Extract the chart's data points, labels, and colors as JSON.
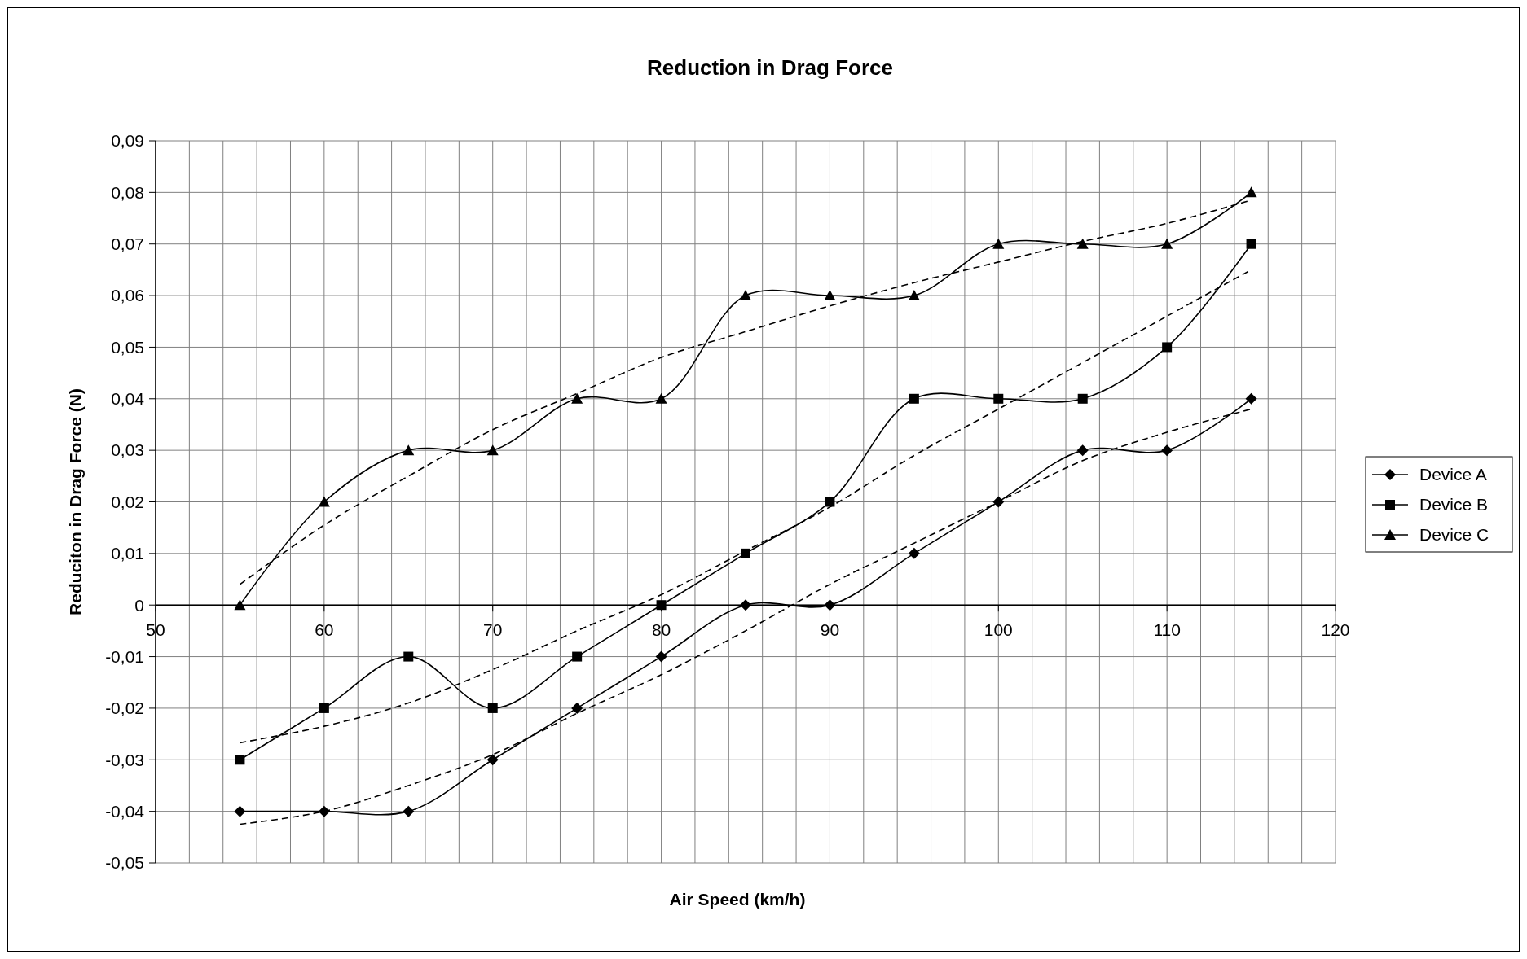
{
  "chart_data": {
    "type": "line",
    "title": "Reduction in Drag Force",
    "xlabel": "Air Speed (km/h)",
    "ylabel": "Reduciton in Drag Force (N)",
    "x": [
      55,
      60,
      65,
      70,
      75,
      80,
      85,
      90,
      95,
      100,
      105,
      110,
      115
    ],
    "series": [
      {
        "name": "Device A",
        "color": "#000000",
        "marker": "diamond",
        "values": [
          -0.04,
          -0.04,
          -0.04,
          -0.03,
          -0.02,
          -0.01,
          0,
          0,
          0.01,
          0.02,
          0.03,
          0.03,
          0.04
        ]
      },
      {
        "name": "Device B",
        "color": "#000000",
        "marker": "square",
        "values": [
          -0.03,
          -0.02,
          -0.01,
          -0.02,
          -0.01,
          0,
          0.01,
          0.02,
          0.04,
          0.04,
          0.04,
          0.05,
          0.07
        ]
      },
      {
        "name": "Device C",
        "color": "#000000",
        "marker": "triangle",
        "values": [
          0,
          0.02,
          0.03,
          0.03,
          0.04,
          0.04,
          0.06,
          0.06,
          0.06,
          0.07,
          0.07,
          0.07,
          0.08
        ]
      },
      {
        "type": "line",
        "color": "#000000",
        "marker": "none",
        "line_style": "dashed",
        "x": [
          55,
          60,
          65,
          70,
          75,
          80,
          85,
          90,
          95,
          100,
          105,
          110,
          115
        ],
        "values": [
          -0.0425,
          -0.04,
          -0.035,
          -0.029,
          -0.021,
          -0.0135,
          -0.005,
          0.004,
          0.012,
          0.02,
          0.028,
          0.0335,
          0.038
        ]
      },
      {
        "type": "line",
        "color": "#000000",
        "marker": "none",
        "line_style": "dashed",
        "x": [
          55,
          60,
          65,
          70,
          75,
          80,
          85,
          90,
          95,
          100,
          105,
          110,
          115
        ],
        "values": [
          -0.0267,
          -0.0235,
          -0.019,
          -0.0125,
          -0.005,
          0.002,
          0.0105,
          0.019,
          0.029,
          0.038,
          0.047,
          0.056,
          0.065
        ]
      },
      {
        "type": "line",
        "color": "#000000",
        "marker": "none",
        "line_style": "dashed",
        "x": [
          55,
          60,
          65,
          70,
          75,
          80,
          85,
          90,
          95,
          100,
          105,
          110,
          115
        ],
        "values": [
          0.004,
          0.0155,
          0.025,
          0.034,
          0.041,
          0.048,
          0.053,
          0.058,
          0.0625,
          0.0665,
          0.0705,
          0.074,
          0.0785
        ]
      }
    ],
    "xlim": [
      50,
      120
    ],
    "xticks": [
      50,
      {
        "value": 52,
        "label": null
      },
      {
        "value": 54,
        "label": null
      },
      {
        "value": 56,
        "label": null
      },
      {
        "value": 58,
        "label": null
      },
      60,
      {
        "value": 62,
        "label": null
      },
      {
        "value": 64,
        "label": null
      },
      {
        "value": 66,
        "label": null
      },
      {
        "value": 68,
        "label": null
      },
      70,
      {
        "value": 72,
        "label": null
      },
      {
        "value": 74,
        "label": null
      },
      {
        "value": 76,
        "label": null
      },
      {
        "value": 78,
        "label": null
      },
      80,
      {
        "value": 82,
        "label": null
      },
      {
        "value": 84,
        "label": null
      },
      {
        "value": 86,
        "label": null
      },
      {
        "value": 88,
        "label": null
      },
      90,
      {
        "value": 92,
        "label": null
      },
      {
        "value": 94,
        "label": null
      },
      {
        "value": 96,
        "label": null
      },
      {
        "value": 98,
        "label": null
      },
      100,
      {
        "value": 102,
        "label": null
      },
      {
        "value": 104,
        "label": null
      },
      {
        "value": 106,
        "label": null
      },
      {
        "value": 108,
        "label": null
      },
      110,
      {
        "value": 112,
        "label": null
      },
      {
        "value": 114,
        "label": null
      },
      {
        "value": 116,
        "label": null
      },
      {
        "value": 118,
        "label": null
      },
      120
    ],
    "ylim": [
      -0.05,
      0.09
    ],
    "yticks": [
      {
        "value": -0.05,
        "label": "-0,05"
      },
      {
        "value": -0.04,
        "label": "-0,04"
      },
      {
        "value": -0.03,
        "label": "-0,03"
      },
      {
        "value": -0.02,
        "label": "-0,02"
      },
      {
        "value": -0.01,
        "label": "-0,01"
      },
      0,
      {
        "value": 0.01,
        "label": "0,01"
      },
      {
        "value": 0.02,
        "label": "0,02"
      },
      {
        "value": 0.03,
        "label": "0,03"
      },
      {
        "value": 0.04,
        "label": "0,04"
      },
      {
        "value": 0.05,
        "label": "0,05"
      },
      {
        "value": 0.06,
        "label": "0,06"
      },
      {
        "value": 0.07,
        "label": "0,07"
      },
      {
        "value": 0.08,
        "label": "0,08"
      },
      {
        "value": 0.09,
        "label": "0,09"
      }
    ],
    "grid": true,
    "legend": "right",
    "line_style": "solid"
  }
}
